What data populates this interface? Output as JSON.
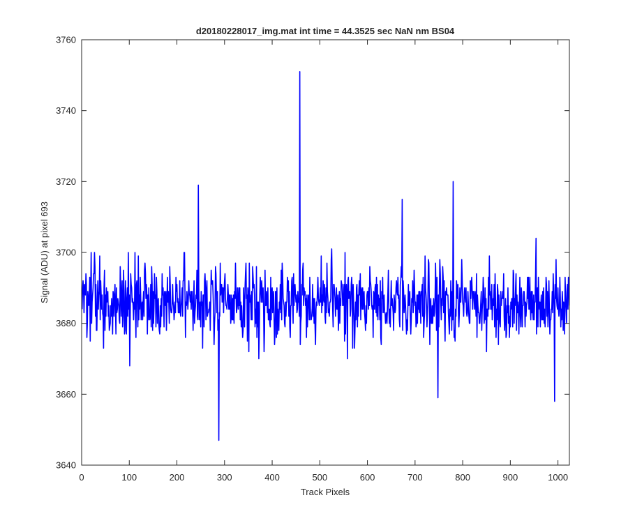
{
  "chart_data": {
    "type": "line",
    "title": "d20180228017_img.mat int time = 44.3525 sec  NaN nm BS04",
    "xlabel": "Track Pixels",
    "ylabel": "Signal (ADU) at pixel 693",
    "xlim": [
      0,
      1024
    ],
    "ylim": [
      3640,
      3760
    ],
    "xticks": [
      0,
      100,
      200,
      300,
      400,
      500,
      600,
      700,
      800,
      900,
      1000
    ],
    "yticks": [
      3640,
      3660,
      3680,
      3700,
      3720,
      3740,
      3760
    ],
    "grid": false,
    "line_color": "#0000ff",
    "baseline_mean": 3686,
    "n_points": 1024,
    "x_start": 1,
    "notable_points": [
      {
        "x": 245,
        "y": 3719
      },
      {
        "x": 288,
        "y": 3647
      },
      {
        "x": 458,
        "y": 3751
      },
      {
        "x": 673,
        "y": 3715
      },
      {
        "x": 748,
        "y": 3659
      },
      {
        "x": 780,
        "y": 3720
      },
      {
        "x": 993,
        "y": 3658
      }
    ]
  }
}
